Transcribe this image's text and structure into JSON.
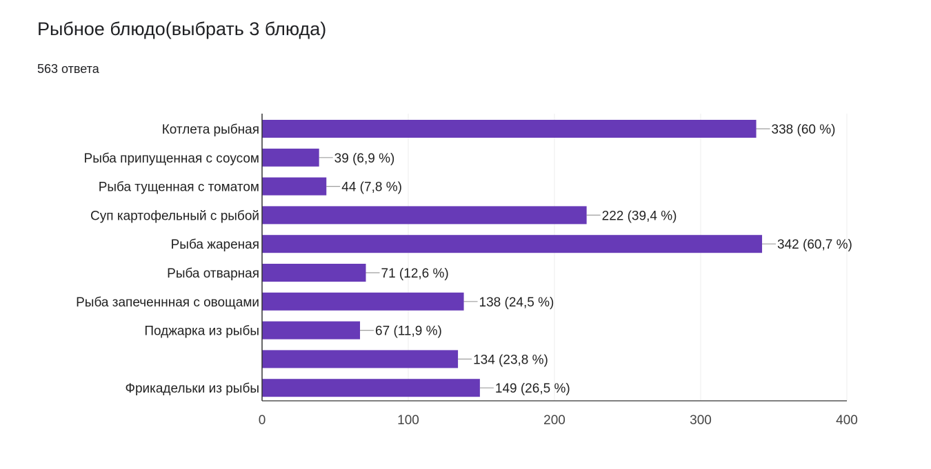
{
  "header": {
    "title": "Рыбное блюдо(выбрать 3 блюда)",
    "responses": "563 ответа"
  },
  "chart_data": {
    "type": "bar",
    "orientation": "horizontal",
    "title": "Рыбное блюдо(выбрать 3 блюда)",
    "xlabel": "",
    "ylabel": "",
    "categories": [
      "Котлета рыбная",
      "Рыба припущенная с соусом",
      "Рыба тущенная с томатом",
      "Суп картофельный с рыбой",
      "Рыба жареная",
      "Рыба отварная",
      "Рыба запеченнная с овощами",
      "Поджарка из рыбы",
      "",
      "Фрикадельки из рыбы"
    ],
    "values": [
      338,
      39,
      44,
      222,
      342,
      71,
      138,
      67,
      134,
      149
    ],
    "value_labels": [
      "338 (60 %)",
      "39 (6,9 %)",
      "44 (7,8 %)",
      "222 (39,4 %)",
      "342 (60,7 %)",
      "71 (12,6 %)",
      "138 (24,5 %)",
      "67 (11,9 %)",
      "134 (23,8 %)",
      "149 (26,5 %)"
    ],
    "xlim": [
      0,
      400
    ],
    "xticks": [
      0,
      100,
      200,
      300,
      400
    ],
    "xtick_labels": [
      "0",
      "100",
      "200",
      "300",
      "400"
    ],
    "grid": true,
    "legend": "none",
    "colors": {
      "bar": "#673ab7",
      "grid": "#eeeeee",
      "axis": "#333333",
      "leader": "#9e9e9e"
    }
  }
}
